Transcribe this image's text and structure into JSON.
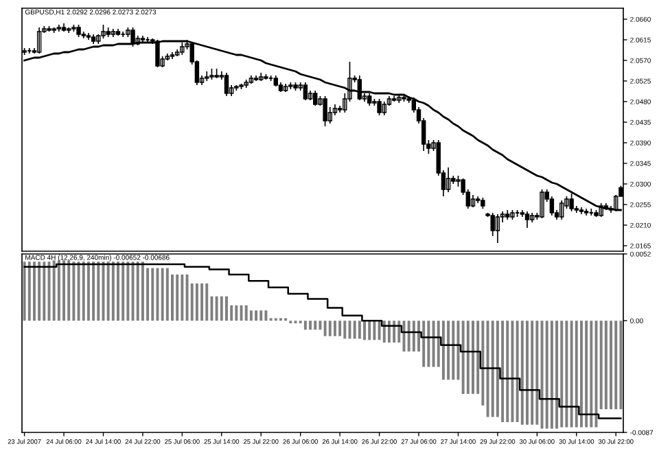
{
  "chart_data": [
    {
      "type": "candlestick",
      "title": "GBPUSD,H1 2.0292 2.0296 2.0273 2.0273",
      "tick_labels": "y",
      "categories": [
        null,
        null,
        null,
        null,
        null,
        null,
        null,
        null,
        null,
        null,
        null,
        null,
        null,
        null,
        null,
        null,
        null,
        null,
        null,
        null,
        null,
        null,
        null,
        null,
        null,
        null,
        null,
        null,
        null,
        null,
        null,
        null,
        null,
        null,
        null,
        null,
        null,
        null,
        null,
        null,
        null,
        null,
        null,
        null,
        null,
        null,
        null,
        null,
        null,
        null,
        null,
        null,
        null,
        null,
        null,
        null,
        null,
        null,
        null,
        null,
        null,
        null,
        null,
        null,
        null,
        null,
        null,
        null,
        null,
        null,
        null,
        null,
        null,
        null,
        null,
        null,
        null,
        null,
        null,
        null,
        null,
        null,
        null,
        null,
        null,
        null,
        null,
        null,
        null,
        null,
        null,
        null,
        null,
        null,
        null,
        null,
        null,
        null,
        null,
        null,
        null,
        null,
        null,
        null,
        null,
        null,
        null,
        null,
        null,
        null,
        null,
        null,
        null,
        null,
        null,
        null,
        null,
        null,
        null,
        null,
        null,
        null
      ],
      "ohlc": [
        [
          2.0588,
          2.0597,
          2.0582,
          2.0591
        ],
        [
          2.0591,
          2.0597,
          2.0585,
          2.0591
        ],
        [
          2.0591,
          2.0597,
          2.0585,
          2.0588
        ],
        [
          2.0588,
          2.0642,
          2.0585,
          2.0633
        ],
        [
          2.0633,
          2.0645,
          2.063,
          2.0639
        ],
        [
          2.0639,
          2.0645,
          2.0633,
          2.0636
        ],
        [
          2.0636,
          2.0642,
          2.063,
          2.0639
        ],
        [
          2.0639,
          2.0648,
          2.0633,
          2.0642
        ],
        [
          2.0642,
          2.0651,
          2.0633,
          2.0636
        ],
        [
          2.0636,
          2.0642,
          2.063,
          2.0639
        ],
        [
          2.0639,
          2.0648,
          2.0633,
          2.0642
        ],
        [
          2.0642,
          2.0648,
          2.0621,
          2.0627
        ],
        [
          2.0627,
          2.0633,
          2.0618,
          2.0624
        ],
        [
          2.0624,
          2.063,
          2.0615,
          2.0621
        ],
        [
          2.0621,
          2.0627,
          2.0606,
          2.0612
        ],
        [
          2.0612,
          2.0627,
          2.0606,
          2.0624
        ],
        [
          2.0624,
          2.0648,
          2.0618,
          2.0633
        ],
        [
          2.0633,
          2.0642,
          2.0621,
          2.0627
        ],
        [
          2.0627,
          2.0639,
          2.0621,
          2.0633
        ],
        [
          2.0633,
          2.0639,
          2.0624,
          2.0627
        ],
        [
          2.0627,
          2.0633,
          2.0621,
          2.0627
        ],
        [
          2.0627,
          2.0642,
          2.0621,
          2.0636
        ],
        [
          2.0636,
          2.0642,
          2.06,
          2.0606
        ],
        [
          2.0606,
          2.0624,
          2.0603,
          2.0618
        ],
        [
          2.0618,
          2.0624,
          2.0609,
          2.0615
        ],
        [
          2.0615,
          2.0621,
          2.0609,
          2.0615
        ],
        [
          2.0615,
          2.0618,
          2.0606,
          2.0612
        ],
        [
          2.0612,
          2.0615,
          2.0555,
          2.0558
        ],
        [
          2.0558,
          2.0579,
          2.0555,
          2.0573
        ],
        [
          2.0573,
          2.0585,
          2.057,
          2.0579
        ],
        [
          2.0579,
          2.0588,
          2.0573,
          2.0582
        ],
        [
          2.0582,
          2.0594,
          2.0579,
          2.0588
        ],
        [
          2.0588,
          2.0609,
          2.0582,
          2.06
        ],
        [
          2.06,
          2.0615,
          2.0594,
          2.0606
        ],
        [
          2.0606,
          2.0609,
          2.0561,
          2.0567
        ],
        [
          2.0567,
          2.057,
          2.0516,
          2.0522
        ],
        [
          2.0522,
          2.0537,
          2.0516,
          2.0531
        ],
        [
          2.0531,
          2.0546,
          2.0525,
          2.0534
        ],
        [
          2.0534,
          2.0552,
          2.0528,
          2.0537
        ],
        [
          2.0537,
          2.0552,
          2.0531,
          2.0534
        ],
        [
          2.0534,
          2.0546,
          2.0528,
          2.0537
        ],
        [
          2.0537,
          2.0543,
          2.0492,
          2.0498
        ],
        [
          2.0498,
          2.0516,
          2.0492,
          2.051
        ],
        [
          2.051,
          2.0516,
          2.0504,
          2.0513
        ],
        [
          2.0513,
          2.0519,
          2.0507,
          2.0516
        ],
        [
          2.0516,
          2.0528,
          2.051,
          2.0522
        ],
        [
          2.0522,
          2.0537,
          2.0519,
          2.0531
        ],
        [
          2.0531,
          2.0537,
          2.0525,
          2.0528
        ],
        [
          2.0528,
          2.0543,
          2.0525,
          2.0534
        ],
        [
          2.0534,
          2.054,
          2.0528,
          2.0531
        ],
        [
          2.0531,
          2.0537,
          2.0525,
          2.0531
        ],
        [
          2.0531,
          2.0537,
          2.0513,
          2.0516
        ],
        [
          2.0516,
          2.0522,
          2.0501,
          2.0504
        ],
        [
          2.0504,
          2.0519,
          2.0501,
          2.0513
        ],
        [
          2.0513,
          2.0522,
          2.0507,
          2.0516
        ],
        [
          2.0516,
          2.0522,
          2.0504,
          2.051
        ],
        [
          2.051,
          2.0522,
          2.0504,
          2.0516
        ],
        [
          2.0516,
          2.0522,
          2.0483,
          2.0486
        ],
        [
          2.0486,
          2.0504,
          2.0483,
          2.0498
        ],
        [
          2.0498,
          2.0504,
          2.0471,
          2.0474
        ],
        [
          2.0474,
          2.0492,
          2.0471,
          2.0486
        ],
        [
          2.0486,
          2.0492,
          2.0426,
          2.0438
        ],
        [
          2.0438,
          2.0468,
          2.0432,
          2.0456
        ],
        [
          2.0456,
          2.0474,
          2.045,
          2.0465
        ],
        [
          2.0465,
          2.0471,
          2.0456,
          2.0462
        ],
        [
          2.0462,
          2.0498,
          2.0456,
          2.0486
        ],
        [
          2.0486,
          2.0567,
          2.048,
          2.0531
        ],
        [
          2.0531,
          2.0537,
          2.0522,
          2.0528
        ],
        [
          2.0528,
          2.0537,
          2.0483,
          2.0486
        ],
        [
          2.0486,
          2.0498,
          2.048,
          2.0492
        ],
        [
          2.0492,
          2.0498,
          2.0471,
          2.0477
        ],
        [
          2.0477,
          2.0486,
          2.0471,
          2.048
        ],
        [
          2.048,
          2.0486,
          2.045,
          2.0456
        ],
        [
          2.0456,
          2.048,
          2.045,
          2.0474
        ],
        [
          2.0474,
          2.0492,
          2.0471,
          2.0486
        ],
        [
          2.0486,
          2.0492,
          2.048,
          2.0483
        ],
        [
          2.0483,
          2.0495,
          2.0477,
          2.0489
        ],
        [
          2.0489,
          2.0495,
          2.048,
          2.0486
        ],
        [
          2.0486,
          2.0492,
          2.0477,
          2.0483
        ],
        [
          2.0483,
          2.0489,
          2.0456,
          2.0462
        ],
        [
          2.0462,
          2.0468,
          2.0432,
          2.0438
        ],
        [
          2.0438,
          2.0444,
          2.0372,
          2.0387
        ],
        [
          2.0387,
          2.0396,
          2.0366,
          2.0378
        ],
        [
          2.0378,
          2.0396,
          2.0372,
          2.039
        ],
        [
          2.039,
          2.0396,
          2.0318,
          2.0324
        ],
        [
          2.0324,
          2.033,
          2.0273,
          2.0288
        ],
        [
          2.0288,
          2.0336,
          2.0282,
          2.0312
        ],
        [
          2.0312,
          2.0318,
          2.03,
          2.0306
        ],
        [
          2.0306,
          2.0318,
          2.0294,
          2.0309
        ],
        [
          2.0309,
          2.0312,
          2.0276,
          2.0282
        ],
        [
          2.0282,
          2.0288,
          2.0246,
          2.0252
        ],
        [
          2.0252,
          2.0276,
          2.0249,
          2.0267
        ],
        [
          2.0267,
          2.0273,
          2.0258,
          2.0264
        ],
        [
          2.0264,
          2.027,
          2.0246,
          2.0252
        ],
        [
          2.0234,
          2.0237,
          2.0228,
          2.0231
        ],
        [
          2.0231,
          2.0237,
          2.0186,
          2.0198
        ],
        [
          2.0198,
          2.0234,
          2.0171,
          2.0228
        ],
        [
          2.0228,
          2.024,
          2.0216,
          2.0234
        ],
        [
          2.0234,
          2.0243,
          2.0222,
          2.0228
        ],
        [
          2.0228,
          2.0243,
          2.0222,
          2.0237
        ],
        [
          2.0237,
          2.0243,
          2.0228,
          2.0237
        ],
        [
          2.0237,
          2.0243,
          2.0228,
          2.0234
        ],
        [
          2.0234,
          2.024,
          2.0204,
          2.0222
        ],
        [
          2.0222,
          2.0237,
          2.0216,
          2.0231
        ],
        [
          2.0231,
          2.0237,
          2.0222,
          2.0228
        ],
        [
          2.0228,
          2.0288,
          2.0225,
          2.0282
        ],
        [
          2.0282,
          2.0288,
          2.0261,
          2.0267
        ],
        [
          2.0267,
          2.0273,
          2.0231,
          2.0237
        ],
        [
          2.0237,
          2.0243,
          2.0222,
          2.0228
        ],
        [
          2.0228,
          2.0264,
          2.0222,
          2.0258
        ],
        [
          2.0252,
          2.0273,
          2.0246,
          2.0267
        ],
        [
          2.0267,
          2.0279,
          2.024,
          2.0246
        ],
        [
          2.0246,
          2.0252,
          2.0237,
          2.0243
        ],
        [
          2.0243,
          2.0249,
          2.0234,
          2.024
        ],
        [
          2.024,
          2.0246,
          2.0231,
          2.0237
        ],
        [
          2.0237,
          2.0246,
          2.0231,
          2.0237
        ],
        [
          2.0237,
          2.0243,
          2.0228,
          2.0231
        ],
        [
          2.0231,
          2.0258,
          2.0228,
          2.0252
        ],
        [
          2.0252,
          2.0258,
          2.0243,
          2.0246
        ],
        [
          2.0246,
          2.0252,
          2.0237,
          2.0243
        ],
        [
          2.0243,
          2.0276,
          2.024,
          2.0273
        ],
        [
          2.0292,
          2.0296,
          2.0273,
          2.0273
        ]
      ],
      "series": [
        {
          "type": "line",
          "color": "#000000",
          "values": [
            2.057,
            2.0573,
            2.0576,
            2.0576,
            2.0579,
            2.0582,
            2.0585,
            2.0585,
            2.0588,
            2.0588,
            2.0591,
            2.0594,
            2.0594,
            2.0597,
            2.06,
            2.06,
            2.0603,
            2.0603,
            2.0603,
            2.0606,
            2.0606,
            2.0606,
            2.0606,
            2.0609,
            2.0609,
            2.0609,
            2.0609,
            2.0609,
            2.0612,
            2.0612,
            2.0612,
            2.0612,
            2.0612,
            2.0612,
            2.0609,
            2.0606,
            2.0603,
            2.06,
            2.0597,
            2.0594,
            2.0591,
            2.0588,
            2.0585,
            2.0582,
            2.0582,
            2.0579,
            2.0576,
            2.0573,
            2.057,
            2.0564,
            2.0561,
            2.0558,
            2.0555,
            2.0552,
            2.0549,
            2.0546,
            2.054,
            2.0537,
            2.0534,
            2.0531,
            2.0528,
            2.0522,
            2.0519,
            2.0516,
            2.0513,
            2.051,
            2.0504,
            2.0504,
            2.0501,
            2.0501,
            2.0501,
            2.0498,
            2.0498,
            2.0498,
            2.0498,
            2.0495,
            2.0495,
            2.0495,
            2.0489,
            2.0486,
            2.048,
            2.0477,
            2.0471,
            2.0462,
            2.0456,
            2.0447,
            2.0441,
            2.0432,
            2.0426,
            2.0417,
            2.0411,
            2.0405,
            2.0396,
            2.039,
            2.0384,
            2.0375,
            2.0369,
            2.0363,
            2.0354,
            2.0348,
            2.0342,
            2.0336,
            2.033,
            2.0324,
            2.0318,
            2.0315,
            2.0309,
            2.0303,
            2.03,
            2.0294,
            2.0288,
            2.0282,
            2.0276,
            2.027,
            2.0264,
            2.0258,
            2.0252,
            2.0249,
            2.0246,
            2.0246,
            2.0243,
            2.0243
          ]
        }
      ],
      "ylim": [
        2.0153,
        2.0684
      ],
      "yticks": [
        {
          "value": 2.066,
          "label": "2.0660"
        },
        2.0615,
        {
          "value": 2.057,
          "label": "2.0570"
        },
        2.0525,
        {
          "value": 2.048,
          "label": "2.0480"
        },
        2.0435,
        {
          "value": 2.039,
          "label": "2.0390"
        },
        2.0345,
        {
          "value": 2.03,
          "label": "2.0300"
        },
        2.0255,
        {
          "value": 2.021,
          "label": "2.0210"
        },
        2.0165
      ]
    },
    {
      "type": "bar",
      "title": "MACD 4H (12,26,9, 240min) -0.00652 -0.00686",
      "categories": [
        "23 Jul 2007",
        null,
        null,
        null,
        null,
        null,
        null,
        null,
        "24 Jul 06:00",
        null,
        null,
        null,
        null,
        null,
        null,
        null,
        "24 Jul 14:00",
        null,
        null,
        null,
        null,
        null,
        null,
        null,
        "24 Jul 22:00",
        null,
        null,
        null,
        null,
        null,
        null,
        null,
        "25 Jul 06:00",
        null,
        null,
        null,
        null,
        null,
        null,
        null,
        "25 Jul 14:00",
        null,
        null,
        null,
        null,
        null,
        null,
        null,
        "25 Jul 22:00",
        null,
        null,
        null,
        null,
        null,
        null,
        null,
        "26 Jul 06:00",
        null,
        null,
        null,
        null,
        null,
        null,
        null,
        "26 Jul 14:00",
        null,
        null,
        null,
        null,
        null,
        null,
        null,
        "26 Jul 22:00",
        null,
        null,
        null,
        null,
        null,
        null,
        null,
        "27 Jul 06:00",
        null,
        null,
        null,
        null,
        null,
        null,
        null,
        "27 Jul 14:00",
        null,
        null,
        null,
        null,
        null,
        null,
        null,
        "29 Jul 22:00",
        null,
        null,
        null,
        null,
        null,
        null,
        null,
        "30 Jul 06:00",
        null,
        null,
        null,
        null,
        null,
        null,
        null,
        "30 Jul 14:00",
        null,
        null,
        null,
        null,
        null,
        null,
        null,
        "30 Jul 22:00",
        null
      ],
      "series": [
        {
          "type": "bar",
          "color": "#808080",
          "values": [
            0.0046,
            0.0046,
            0.0046,
            0.0046,
            0.0046,
            0.0046,
            0.0047,
            0.0047,
            0.0047,
            0.0047,
            0.0046,
            0.0046,
            0.0046,
            0.0046,
            0.0046,
            0.0046,
            0.0046,
            0.0046,
            0.0046,
            0.0046,
            0.0046,
            0.0046,
            0.0046,
            0.0046,
            0.0046,
            0.0041,
            0.0041,
            0.0041,
            0.0041,
            0.0041,
            0.0036,
            0.0036,
            0.0036,
            0.0036,
            0.0029,
            0.0029,
            0.0029,
            0.0029,
            0.0019,
            0.0019,
            0.0019,
            0.0019,
            0.0012,
            0.0012,
            0.0012,
            0.0012,
            0.0008,
            0.0008,
            0.0008,
            0.0008,
            0.0002,
            0.0002,
            0.0002,
            0.0002,
            -0.0002,
            -0.0002,
            -0.0002,
            -0.0007,
            -0.0007,
            -0.0007,
            -0.0007,
            -0.0012,
            -0.0012,
            -0.0012,
            -0.0012,
            -0.0014,
            -0.0014,
            -0.0014,
            -0.0014,
            -0.0015,
            -0.0015,
            -0.0015,
            -0.0015,
            -0.0017,
            -0.0017,
            -0.0017,
            -0.0017,
            -0.0024,
            -0.0024,
            -0.0024,
            -0.0024,
            -0.0036,
            -0.0036,
            -0.0036,
            -0.0036,
            -0.0046,
            -0.0046,
            -0.0046,
            -0.0046,
            -0.0057,
            -0.0057,
            -0.0057,
            -0.0057,
            -0.0066,
            -0.0075,
            -0.0075,
            -0.0075,
            -0.0079,
            -0.0079,
            -0.0079,
            -0.0079,
            -0.0081,
            -0.0081,
            -0.0081,
            -0.0081,
            -0.0084,
            -0.0084,
            -0.0084,
            -0.0084,
            -0.0083,
            -0.0083,
            -0.0083,
            -0.0083,
            -0.0083,
            -0.0083,
            -0.0083,
            -0.0083,
            -0.0069,
            -0.0069,
            -0.0069,
            -0.0069,
            -0.0069
          ]
        },
        {
          "type": "step",
          "color": "#000000",
          "values": [
            0.0042,
            0.0042,
            0.0042,
            0.0042,
            0.0042,
            0.0042,
            0.0042,
            0.0044,
            0.0044,
            0.0044,
            0.0044,
            0.0044,
            0.0044,
            0.0044,
            0.0044,
            0.0044,
            0.0044,
            0.0044,
            0.0044,
            0.0044,
            0.0044,
            0.0044,
            0.0044,
            0.0044,
            0.0044,
            0.0044,
            0.0044,
            0.0044,
            0.0044,
            0.0044,
            0.0044,
            0.0044,
            0.0044,
            0.0042,
            0.0042,
            0.0042,
            0.0042,
            0.0042,
            0.004,
            0.004,
            0.004,
            0.004,
            0.0036,
            0.0036,
            0.0036,
            0.0036,
            0.0031,
            0.0031,
            0.0031,
            0.0031,
            0.0026,
            0.0026,
            0.0026,
            0.0026,
            0.0021,
            0.0021,
            0.0021,
            0.0021,
            0.0017,
            0.0017,
            0.0017,
            0.0017,
            0.001,
            0.001,
            0.001,
            0.0004,
            0.0004,
            0.0004,
            0.0004,
            0.0,
            0.0,
            0.0,
            0.0,
            -0.0004,
            -0.0004,
            -0.0004,
            -0.0004,
            -0.0009,
            -0.0009,
            -0.0009,
            -0.0009,
            -0.0013,
            -0.0013,
            -0.0013,
            -0.0013,
            -0.0019,
            -0.0019,
            -0.0019,
            -0.0019,
            -0.0024,
            -0.0024,
            -0.0024,
            -0.0024,
            -0.0037,
            -0.0037,
            -0.0037,
            -0.0037,
            -0.0045,
            -0.0045,
            -0.0045,
            -0.0045,
            -0.0054,
            -0.0054,
            -0.0054,
            -0.0054,
            -0.0061,
            -0.0061,
            -0.0061,
            -0.0061,
            -0.0067,
            -0.0067,
            -0.0067,
            -0.0067,
            -0.0073,
            -0.0073,
            -0.0073,
            -0.0073,
            -0.0076,
            -0.0076,
            -0.0076,
            -0.0076,
            -0.0076
          ]
        }
      ],
      "ylim": [
        -0.0087,
        0.0052
      ],
      "yticks": [
        {
          "value": 0.0052,
          "label": "0.0052"
        },
        {
          "value": 0,
          "label": "0.00"
        },
        {
          "value": -0.0087,
          "label": "-0.0087"
        }
      ]
    }
  ]
}
